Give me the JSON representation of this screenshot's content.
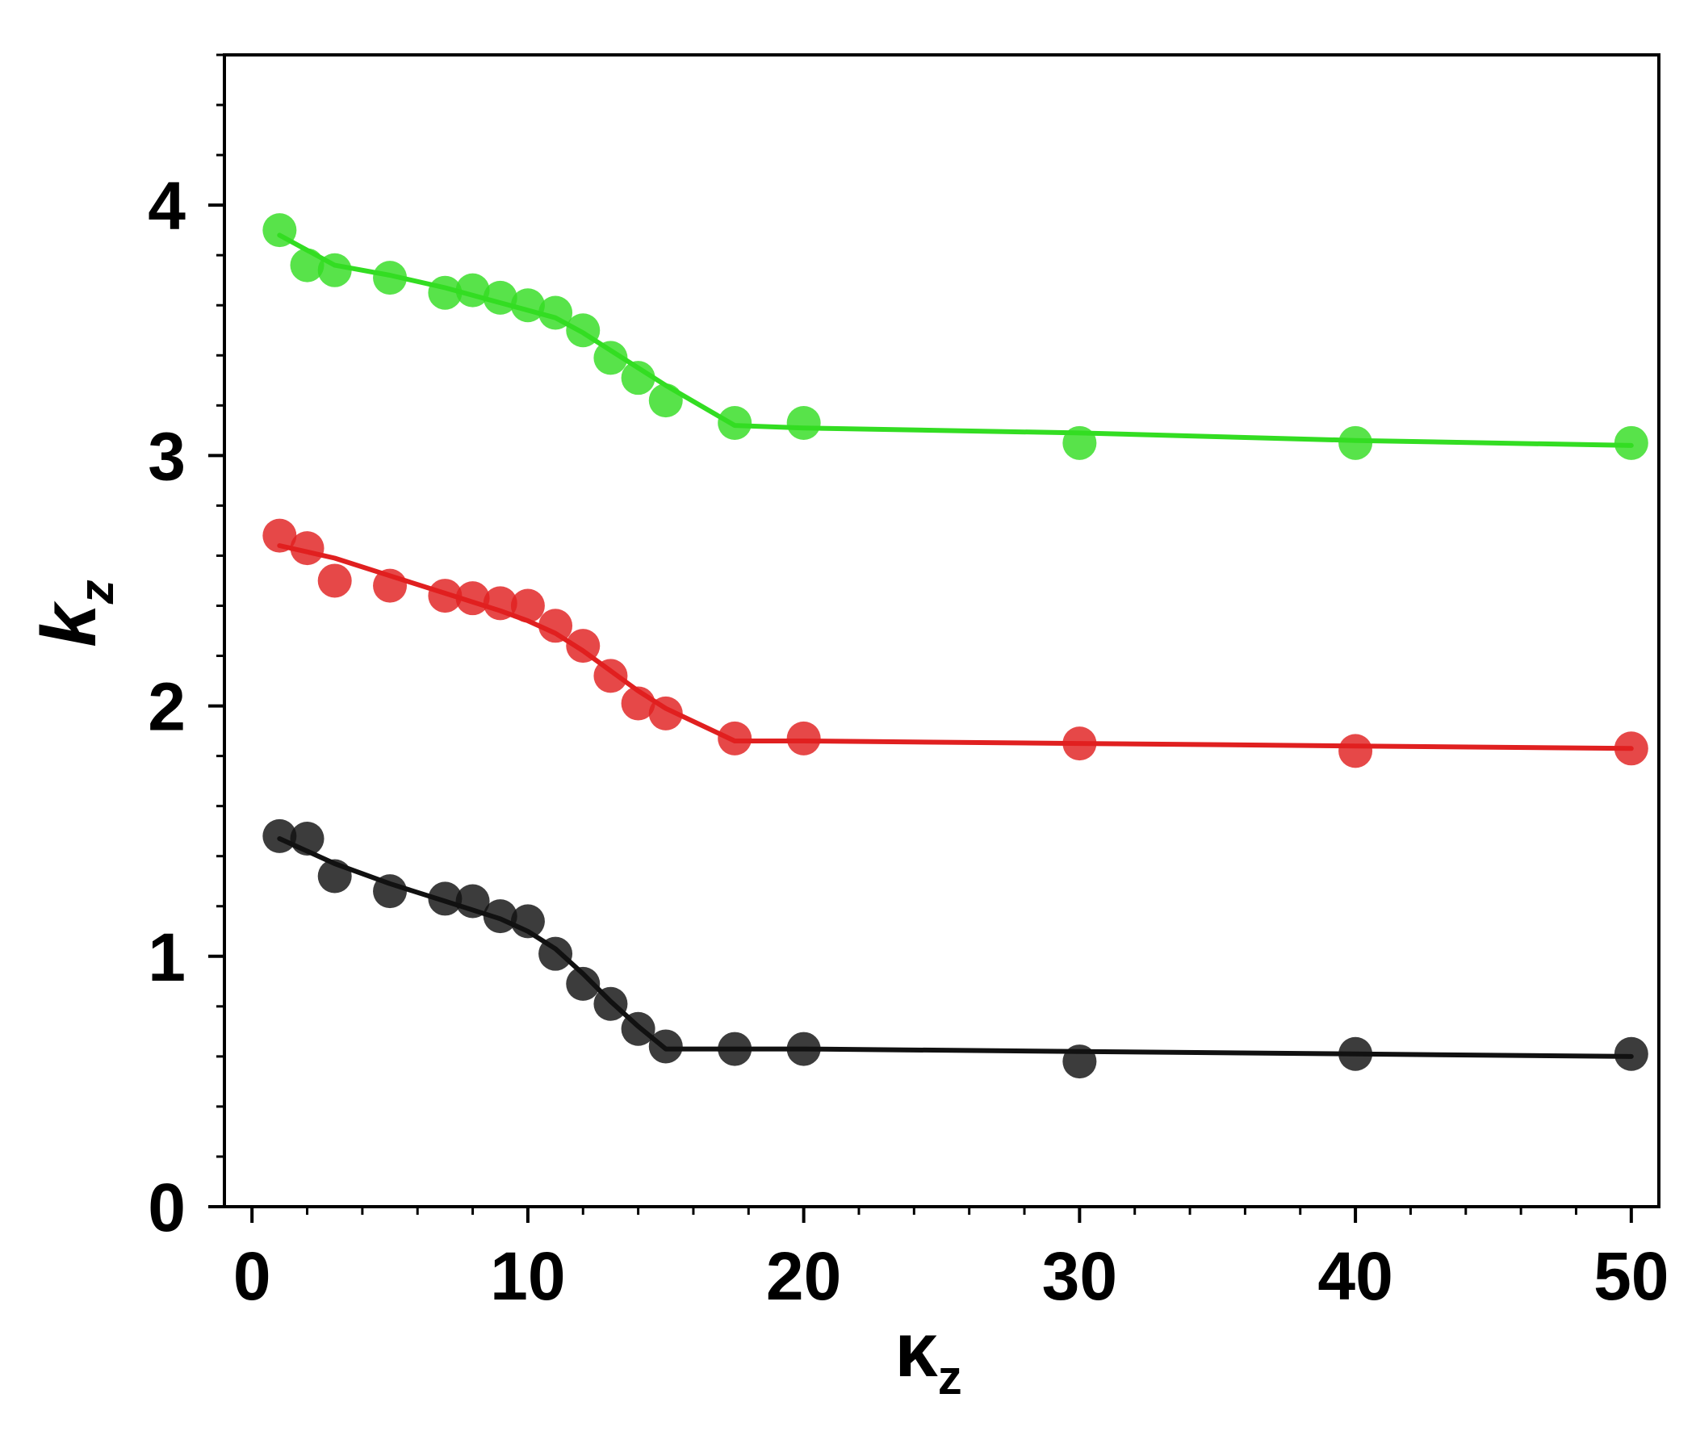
{
  "chart_data": {
    "type": "line",
    "title": "",
    "xlabel": {
      "symbol": "κ",
      "subscript": "z"
    },
    "ylabel": {
      "symbol": "k",
      "subscript": "z"
    },
    "xlim": [
      -1,
      51
    ],
    "ylim": [
      0,
      4.6
    ],
    "x_ticks": [
      0,
      10,
      20,
      30,
      40,
      50
    ],
    "y_ticks": [
      0,
      1,
      2,
      3,
      4
    ],
    "x_tick_labels": [
      "0",
      "10",
      "20",
      "30",
      "40",
      "50"
    ],
    "y_tick_labels": [
      "0",
      "1",
      "2",
      "3",
      "4"
    ],
    "x_minor_step": 2,
    "y_minor_step": 0.2,
    "grid": false,
    "legend": "none",
    "series": [
      {
        "color": "#33dd22",
        "x": [
          1,
          2,
          3,
          5,
          7,
          8,
          9,
          10,
          11,
          12,
          13,
          14,
          15,
          17.5,
          20,
          30,
          40,
          50
        ],
        "y": [
          3.9,
          3.76,
          3.74,
          3.71,
          3.65,
          3.66,
          3.63,
          3.6,
          3.57,
          3.5,
          3.39,
          3.31,
          3.22,
          3.13,
          3.13,
          3.05,
          3.05,
          3.05
        ],
        "fit": {
          "x": [
            1,
            3,
            5,
            7,
            9,
            11,
            12,
            13,
            14,
            15,
            17.5,
            20,
            30,
            40,
            50
          ],
          "y": [
            3.88,
            3.76,
            3.72,
            3.67,
            3.61,
            3.55,
            3.49,
            3.42,
            3.35,
            3.28,
            3.12,
            3.11,
            3.09,
            3.06,
            3.04
          ]
        }
      },
      {
        "color": "#e02020",
        "x": [
          1,
          2,
          3,
          5,
          7,
          8,
          9,
          10,
          11,
          12,
          13,
          14,
          15,
          17.5,
          20,
          30,
          40,
          50
        ],
        "y": [
          2.68,
          2.63,
          2.5,
          2.48,
          2.44,
          2.43,
          2.41,
          2.4,
          2.32,
          2.24,
          2.12,
          2.01,
          1.97,
          1.87,
          1.87,
          1.85,
          1.82,
          1.83
        ],
        "fit": {
          "x": [
            1,
            3,
            5,
            7,
            9,
            10,
            11,
            12,
            13,
            14,
            15,
            17.5,
            20,
            30,
            40,
            50
          ],
          "y": [
            2.64,
            2.59,
            2.52,
            2.45,
            2.38,
            2.34,
            2.29,
            2.22,
            2.14,
            2.06,
            1.99,
            1.86,
            1.86,
            1.85,
            1.84,
            1.83
          ]
        }
      },
      {
        "color": "#111111",
        "x": [
          1,
          2,
          3,
          5,
          7,
          8,
          9,
          10,
          11,
          12,
          13,
          14,
          15,
          17.5,
          20,
          30,
          40,
          50
        ],
        "y": [
          1.48,
          1.47,
          1.32,
          1.26,
          1.23,
          1.22,
          1.16,
          1.14,
          1.01,
          0.89,
          0.81,
          0.71,
          0.64,
          0.63,
          0.63,
          0.58,
          0.61,
          0.61
        ],
        "fit": {
          "x": [
            1,
            3,
            5,
            7,
            9,
            10,
            11,
            12,
            13,
            14,
            15,
            17.5,
            20,
            30,
            40,
            50
          ],
          "y": [
            1.47,
            1.37,
            1.29,
            1.22,
            1.15,
            1.1,
            1.03,
            0.93,
            0.82,
            0.72,
            0.63,
            0.63,
            0.63,
            0.62,
            0.61,
            0.6
          ]
        }
      }
    ]
  }
}
